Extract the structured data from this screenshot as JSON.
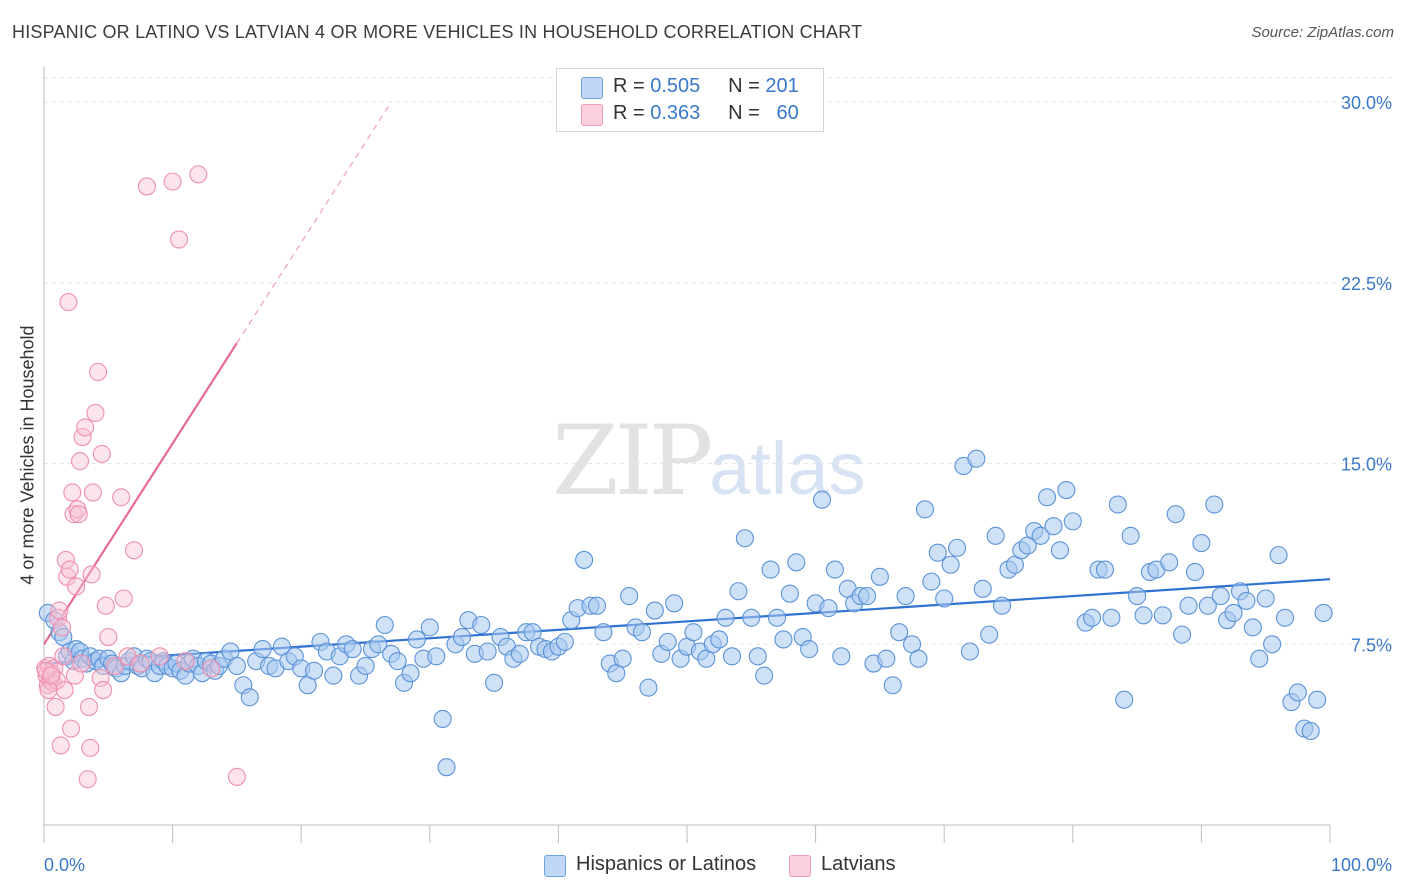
{
  "header": {
    "title": "HISPANIC OR LATINO VS LATVIAN 4 OR MORE VEHICLES IN HOUSEHOLD CORRELATION CHART",
    "source": "Source: ZipAtlas.com"
  },
  "watermark": {
    "zip": "ZIP",
    "atlas": "atlas"
  },
  "legend": {
    "rows": [
      {
        "r_label": "R =",
        "r_value": "0.505",
        "n_label": "N =",
        "n_value": "201",
        "color": "#a8c8f0"
      },
      {
        "r_label": "R =",
        "r_value": "0.363",
        "n_label": "N =",
        "n_value": "60",
        "color": "#f5b8cb"
      }
    ]
  },
  "bottom_legend": [
    "Hispanics or Latinos",
    "Latvians"
  ],
  "chart_data": {
    "type": "scatter",
    "title": "HISPANIC OR LATINO VS LATVIAN 4 OR MORE VEHICLES IN HOUSEHOLD CORRELATION CHART",
    "xlabel": "",
    "ylabel": "4 or more Vehicles in Household",
    "xlim": [
      0,
      100
    ],
    "ylim": [
      0,
      31
    ],
    "x_tick_labels": [
      "0.0%",
      "100.0%"
    ],
    "y_ticks": [
      7.5,
      15.0,
      22.5,
      30.0
    ],
    "y_tick_labels": [
      "7.5%",
      "15.0%",
      "22.5%",
      "30.0%"
    ],
    "grid": "horizontal dashed",
    "series": [
      {
        "name": "Hispanics or Latinos",
        "color": "#6fa3e0",
        "trend": {
          "x": [
            0,
            100
          ],
          "y": [
            6.7,
            10.2
          ]
        },
        "points": [
          [
            0.3,
            8.8
          ],
          [
            0.8,
            8.5
          ],
          [
            1.2,
            8.0
          ],
          [
            1.5,
            7.8
          ],
          [
            1.8,
            7.0
          ],
          [
            2.0,
            7.2
          ],
          [
            2.3,
            6.8
          ],
          [
            2.5,
            7.3
          ],
          [
            2.8,
            7.2
          ],
          [
            3.0,
            6.9
          ],
          [
            3.3,
            6.7
          ],
          [
            3.6,
            7.0
          ],
          [
            4.0,
            6.8
          ],
          [
            4.3,
            6.9
          ],
          [
            4.6,
            6.6
          ],
          [
            5.0,
            6.9
          ],
          [
            5.3,
            6.7
          ],
          [
            5.6,
            6.5
          ],
          [
            6.0,
            6.3
          ],
          [
            6.3,
            6.6
          ],
          [
            6.6,
            6.8
          ],
          [
            7.0,
            7.0
          ],
          [
            7.3,
            6.6
          ],
          [
            7.6,
            6.5
          ],
          [
            8.0,
            6.9
          ],
          [
            8.3,
            6.8
          ],
          [
            8.6,
            6.3
          ],
          [
            9.0,
            6.6
          ],
          [
            9.3,
            6.8
          ],
          [
            9.6,
            6.6
          ],
          [
            10.0,
            6.5
          ],
          [
            10.3,
            6.7
          ],
          [
            10.6,
            6.4
          ],
          [
            11.0,
            6.2
          ],
          [
            11.3,
            6.7
          ],
          [
            11.6,
            6.9
          ],
          [
            12.0,
            6.6
          ],
          [
            12.3,
            6.3
          ],
          [
            12.6,
            6.8
          ],
          [
            13.0,
            6.7
          ],
          [
            13.3,
            6.4
          ],
          [
            13.6,
            6.6
          ],
          [
            14.0,
            6.9
          ],
          [
            14.5,
            7.2
          ],
          [
            15.0,
            6.6
          ],
          [
            15.5,
            5.8
          ],
          [
            16.0,
            5.3
          ],
          [
            16.5,
            6.8
          ],
          [
            17.0,
            7.3
          ],
          [
            17.5,
            6.6
          ],
          [
            18.0,
            6.5
          ],
          [
            18.5,
            7.4
          ],
          [
            19.0,
            6.8
          ],
          [
            19.5,
            7.0
          ],
          [
            20.0,
            6.5
          ],
          [
            20.5,
            5.8
          ],
          [
            21.0,
            6.4
          ],
          [
            21.5,
            7.6
          ],
          [
            22.0,
            7.2
          ],
          [
            22.5,
            6.2
          ],
          [
            23.0,
            7.0
          ],
          [
            23.5,
            7.5
          ],
          [
            24.0,
            7.3
          ],
          [
            24.5,
            6.2
          ],
          [
            25.0,
            6.6
          ],
          [
            25.5,
            7.3
          ],
          [
            26.0,
            7.5
          ],
          [
            26.5,
            8.3
          ],
          [
            27.0,
            7.1
          ],
          [
            27.5,
            6.8
          ],
          [
            28.0,
            5.9
          ],
          [
            28.5,
            6.3
          ],
          [
            29.0,
            7.7
          ],
          [
            29.5,
            6.9
          ],
          [
            30.0,
            8.2
          ],
          [
            30.5,
            7.0
          ],
          [
            31.0,
            4.4
          ],
          [
            31.3,
            2.4
          ],
          [
            32.0,
            7.5
          ],
          [
            32.5,
            7.8
          ],
          [
            33.0,
            8.5
          ],
          [
            33.5,
            7.1
          ],
          [
            34.0,
            8.3
          ],
          [
            34.5,
            7.2
          ],
          [
            35.0,
            5.9
          ],
          [
            35.5,
            7.8
          ],
          [
            36.0,
            7.4
          ],
          [
            36.5,
            6.9
          ],
          [
            37.0,
            7.1
          ],
          [
            37.5,
            8.0
          ],
          [
            38.0,
            8.0
          ],
          [
            38.5,
            7.4
          ],
          [
            39.0,
            7.3
          ],
          [
            39.5,
            7.2
          ],
          [
            40.0,
            7.4
          ],
          [
            40.5,
            7.6
          ],
          [
            41.0,
            8.5
          ],
          [
            41.5,
            9.0
          ],
          [
            42.0,
            11.0
          ],
          [
            42.5,
            9.1
          ],
          [
            43.0,
            9.1
          ],
          [
            43.5,
            8.0
          ],
          [
            44.0,
            6.7
          ],
          [
            44.5,
            6.3
          ],
          [
            45.0,
            6.9
          ],
          [
            45.5,
            9.5
          ],
          [
            46.0,
            8.2
          ],
          [
            46.5,
            8.0
          ],
          [
            47.0,
            5.7
          ],
          [
            47.5,
            8.9
          ],
          [
            48.0,
            7.1
          ],
          [
            48.5,
            7.6
          ],
          [
            49.0,
            9.2
          ],
          [
            49.5,
            6.9
          ],
          [
            50.0,
            7.4
          ],
          [
            50.5,
            8.0
          ],
          [
            51.0,
            7.2
          ],
          [
            51.5,
            6.9
          ],
          [
            52.0,
            7.5
          ],
          [
            52.5,
            7.7
          ],
          [
            53.0,
            8.6
          ],
          [
            53.5,
            7.0
          ],
          [
            54.0,
            9.7
          ],
          [
            54.5,
            11.9
          ],
          [
            55.0,
            8.6
          ],
          [
            55.5,
            7.0
          ],
          [
            56.0,
            6.2
          ],
          [
            56.5,
            10.6
          ],
          [
            57.0,
            8.6
          ],
          [
            57.5,
            7.7
          ],
          [
            58.0,
            9.6
          ],
          [
            58.5,
            10.9
          ],
          [
            59.0,
            7.8
          ],
          [
            59.5,
            7.3
          ],
          [
            60.0,
            9.2
          ],
          [
            60.5,
            13.5
          ],
          [
            61.0,
            9.0
          ],
          [
            61.5,
            10.6
          ],
          [
            62.0,
            7.0
          ],
          [
            62.5,
            9.8
          ],
          [
            63.0,
            9.2
          ],
          [
            63.5,
            9.5
          ],
          [
            64.0,
            9.5
          ],
          [
            64.5,
            6.7
          ],
          [
            65.0,
            10.3
          ],
          [
            65.5,
            6.9
          ],
          [
            66.0,
            5.8
          ],
          [
            66.5,
            8.0
          ],
          [
            67.0,
            9.5
          ],
          [
            67.5,
            7.5
          ],
          [
            68.0,
            6.9
          ],
          [
            68.5,
            13.1
          ],
          [
            69.0,
            10.1
          ],
          [
            69.5,
            11.3
          ],
          [
            70.0,
            9.4
          ],
          [
            70.5,
            10.8
          ],
          [
            71.0,
            11.5
          ],
          [
            71.5,
            14.9
          ],
          [
            72.0,
            7.2
          ],
          [
            72.5,
            15.2
          ],
          [
            73.0,
            9.8
          ],
          [
            73.5,
            7.9
          ],
          [
            74.0,
            12.0
          ],
          [
            74.5,
            9.1
          ],
          [
            75.0,
            10.6
          ],
          [
            75.5,
            10.8
          ],
          [
            76.0,
            11.4
          ],
          [
            76.5,
            11.6
          ],
          [
            77.0,
            12.2
          ],
          [
            77.5,
            12.0
          ],
          [
            78.0,
            13.6
          ],
          [
            78.5,
            12.4
          ],
          [
            79.0,
            11.4
          ],
          [
            79.5,
            13.9
          ],
          [
            80.0,
            12.6
          ],
          [
            81.0,
            8.4
          ],
          [
            81.5,
            8.6
          ],
          [
            82.0,
            10.6
          ],
          [
            82.5,
            10.6
          ],
          [
            83.0,
            8.6
          ],
          [
            83.5,
            13.3
          ],
          [
            84.0,
            5.2
          ],
          [
            84.5,
            12.0
          ],
          [
            85.0,
            9.5
          ],
          [
            85.5,
            8.7
          ],
          [
            86.0,
            10.5
          ],
          [
            86.5,
            10.6
          ],
          [
            87.0,
            8.7
          ],
          [
            87.5,
            10.9
          ],
          [
            88.0,
            12.9
          ],
          [
            88.5,
            7.9
          ],
          [
            89.0,
            9.1
          ],
          [
            89.5,
            10.5
          ],
          [
            90.0,
            11.7
          ],
          [
            90.5,
            9.1
          ],
          [
            91.0,
            13.3
          ],
          [
            91.5,
            9.5
          ],
          [
            92.0,
            8.5
          ],
          [
            92.5,
            8.8
          ],
          [
            93.0,
            9.7
          ],
          [
            93.5,
            9.3
          ],
          [
            94.0,
            8.2
          ],
          [
            94.5,
            6.9
          ],
          [
            95.0,
            9.4
          ],
          [
            95.5,
            7.5
          ],
          [
            96.0,
            11.2
          ],
          [
            96.5,
            8.6
          ],
          [
            97.0,
            5.1
          ],
          [
            97.5,
            5.5
          ],
          [
            98.0,
            4.0
          ],
          [
            98.5,
            3.9
          ],
          [
            99.0,
            5.2
          ],
          [
            99.5,
            8.8
          ]
        ]
      },
      {
        "name": "Latvians",
        "color": "#f09ab5",
        "trend": {
          "x": [
            0,
            15
          ],
          "y": [
            7.5,
            20.0
          ]
        },
        "trend_extension": {
          "x": [
            15,
            27
          ],
          "y": [
            20.0,
            30.0
          ]
        },
        "points": [
          [
            0.1,
            6.5
          ],
          [
            0.2,
            6.2
          ],
          [
            0.3,
            5.8
          ],
          [
            0.4,
            6.6
          ],
          [
            0.5,
            6.0
          ],
          [
            0.6,
            6.3
          ],
          [
            0.7,
            5.9
          ],
          [
            0.8,
            6.5
          ],
          [
            0.9,
            4.9
          ],
          [
            1.0,
            6.0
          ],
          [
            1.1,
            8.6
          ],
          [
            1.2,
            8.9
          ],
          [
            1.3,
            3.3
          ],
          [
            1.4,
            8.2
          ],
          [
            1.5,
            7.0
          ],
          [
            1.6,
            5.6
          ],
          [
            1.7,
            11.0
          ],
          [
            1.8,
            10.3
          ],
          [
            1.9,
            21.7
          ],
          [
            2.0,
            10.6
          ],
          [
            2.1,
            4.0
          ],
          [
            2.2,
            13.8
          ],
          [
            2.3,
            12.9
          ],
          [
            2.4,
            6.2
          ],
          [
            2.5,
            9.9
          ],
          [
            2.6,
            13.1
          ],
          [
            2.7,
            12.9
          ],
          [
            2.8,
            15.1
          ],
          [
            2.9,
            6.7
          ],
          [
            3.0,
            16.1
          ],
          [
            3.2,
            16.5
          ],
          [
            3.4,
            1.9
          ],
          [
            3.5,
            4.9
          ],
          [
            3.6,
            3.2
          ],
          [
            3.7,
            10.4
          ],
          [
            3.8,
            13.8
          ],
          [
            4.0,
            17.1
          ],
          [
            4.2,
            18.8
          ],
          [
            4.4,
            6.1
          ],
          [
            4.5,
            15.4
          ],
          [
            4.6,
            5.6
          ],
          [
            4.8,
            9.1
          ],
          [
            5.0,
            7.8
          ],
          [
            5.5,
            6.6
          ],
          [
            6.0,
            13.6
          ],
          [
            6.2,
            9.4
          ],
          [
            6.5,
            7.0
          ],
          [
            7.0,
            11.4
          ],
          [
            7.5,
            6.7
          ],
          [
            8.0,
            26.5
          ],
          [
            9.0,
            7.0
          ],
          [
            10.0,
            26.7
          ],
          [
            10.5,
            24.3
          ],
          [
            11.0,
            6.8
          ],
          [
            12.0,
            27.0
          ],
          [
            13.0,
            6.5
          ],
          [
            15.0,
            2.0
          ],
          [
            0.15,
            6.4
          ],
          [
            0.35,
            5.6
          ],
          [
            0.55,
            6.2
          ]
        ]
      }
    ]
  }
}
